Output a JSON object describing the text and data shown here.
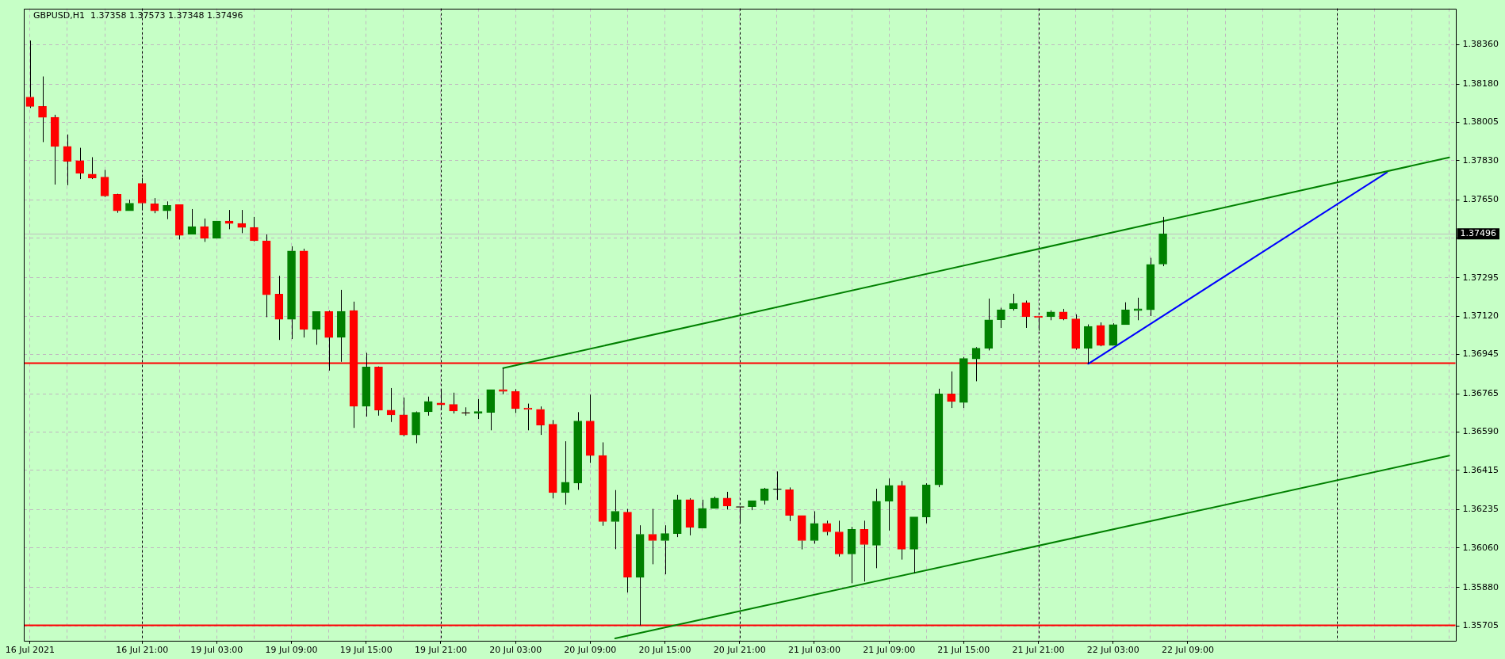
{
  "chart_data": {
    "type": "candlestick",
    "title": "GBPUSD,H1  1.37358 1.37573 1.37348 1.37496",
    "categories": [
      "16 Jul 2021",
      null,
      null,
      null,
      null,
      null,
      null,
      null,
      null,
      "16 Jul 21:00",
      null,
      null,
      null,
      null,
      null,
      "19 Jul 03:00",
      null,
      null,
      null,
      null,
      null,
      "19 Jul 09:00",
      null,
      null,
      null,
      null,
      null,
      "19 Jul 15:00",
      null,
      null,
      null,
      null,
      null,
      "19 Jul 21:00",
      null,
      null,
      null,
      null,
      null,
      "20 Jul 03:00",
      null,
      null,
      null,
      null,
      null,
      "20 Jul 09:00",
      null,
      null,
      null,
      null,
      null,
      "20 Jul 15:00",
      null,
      null,
      null,
      null,
      null,
      "20 Jul 21:00",
      null,
      null,
      null,
      null,
      null,
      "21 Jul 03:00",
      null,
      null,
      null,
      null,
      null,
      "21 Jul 09:00",
      null,
      null,
      null,
      null,
      null,
      "21 Jul 15:00",
      null,
      null,
      null,
      null,
      null,
      "21 Jul 21:00",
      null,
      null,
      null,
      null,
      null,
      "22 Jul 03:00",
      null,
      null,
      null,
      null,
      null,
      "22 Jul 09:00",
      null,
      null,
      null,
      null,
      null,
      null,
      null,
      null,
      null,
      null,
      null,
      null,
      null,
      null,
      null,
      null,
      null,
      null,
      null,
      null,
      null
    ],
    "ohlc": [
      [
        1.38121,
        1.38379,
        1.38071,
        1.38078
      ],
      [
        1.38078,
        1.38215,
        1.37915,
        1.38028
      ],
      [
        1.38028,
        1.3804,
        1.37721,
        1.37895
      ],
      [
        1.37895,
        1.3795,
        1.37718,
        1.37827
      ],
      [
        1.3783,
        1.37889,
        1.37746,
        1.37773
      ],
      [
        1.37769,
        1.37846,
        1.37746,
        1.37751
      ],
      [
        1.37755,
        1.37788,
        1.37664,
        1.37669
      ],
      [
        1.37676,
        1.37679,
        1.37592,
        1.37601
      ],
      [
        1.37601,
        1.37652,
        1.37601,
        1.37636
      ],
      [
        1.37726,
        1.37751,
        1.37604,
        1.37636
      ],
      [
        1.37633,
        1.37659,
        1.3759,
        1.37601
      ],
      [
        1.37601,
        1.37644,
        1.37563,
        1.37626
      ],
      [
        1.37629,
        1.37629,
        1.3747,
        1.37489
      ],
      [
        1.37493,
        1.37609,
        1.37493,
        1.37529
      ],
      [
        1.37529,
        1.37566,
        1.37459,
        1.37475
      ],
      [
        1.37475,
        1.37554,
        1.37475,
        1.37554
      ],
      [
        1.37554,
        1.37605,
        1.37517,
        1.37543
      ],
      [
        1.37543,
        1.37605,
        1.37499,
        1.37525
      ],
      [
        1.37525,
        1.37573,
        1.37461,
        1.37464
      ],
      [
        1.37464,
        1.37493,
        1.37115,
        1.37217
      ],
      [
        1.3722,
        1.37304,
        1.37011,
        1.37105
      ],
      [
        1.37105,
        1.37439,
        1.37015,
        1.37418
      ],
      [
        1.37418,
        1.37428,
        1.37022,
        1.37059
      ],
      [
        1.37059,
        1.37141,
        1.36989,
        1.37141
      ],
      [
        1.37141,
        1.37145,
        1.36871,
        1.37022
      ],
      [
        1.37023,
        1.3724,
        1.36911,
        1.37142
      ],
      [
        1.37145,
        1.37186,
        1.36609,
        1.36708
      ],
      [
        1.36708,
        1.36952,
        1.36661,
        1.36887
      ],
      [
        1.36887,
        1.3689,
        1.36665,
        1.3669
      ],
      [
        1.3669,
        1.36791,
        1.36636,
        1.36668
      ],
      [
        1.36668,
        1.36748,
        1.36571,
        1.36577
      ],
      [
        1.36577,
        1.36684,
        1.36539,
        1.3668
      ],
      [
        1.36683,
        1.36752,
        1.36665,
        1.3673
      ],
      [
        1.36723,
        1.36784,
        1.3669,
        1.36714
      ],
      [
        1.36716,
        1.3677,
        1.36675,
        1.36686
      ],
      [
        1.36678,
        1.36703,
        1.36665,
        1.36677
      ],
      [
        1.36676,
        1.36741,
        1.36649,
        1.36684
      ],
      [
        1.3668,
        1.36784,
        1.36598,
        1.36784
      ],
      [
        1.36784,
        1.36882,
        1.36763,
        1.36776
      ],
      [
        1.36776,
        1.36786,
        1.36677,
        1.36697
      ],
      [
        1.367,
        1.3672,
        1.36598,
        1.36693
      ],
      [
        1.36694,
        1.36707,
        1.36577,
        1.36622
      ],
      [
        1.36626,
        1.36645,
        1.36287,
        1.36313
      ],
      [
        1.36313,
        1.36548,
        1.36258,
        1.36361
      ],
      [
        1.36357,
        1.36681,
        1.36326,
        1.3664
      ],
      [
        1.3664,
        1.36761,
        1.36449,
        1.36483
      ],
      [
        1.36483,
        1.36543,
        1.36162,
        1.36181
      ],
      [
        1.36181,
        1.36325,
        1.36055,
        1.36228
      ],
      [
        1.36224,
        1.36239,
        1.35857,
        1.35927
      ],
      [
        1.35926,
        1.36164,
        1.35707,
        1.36123
      ],
      [
        1.36123,
        1.36239,
        1.35986,
        1.36094
      ],
      [
        1.36094,
        1.36164,
        1.3594,
        1.36126
      ],
      [
        1.36126,
        1.36303,
        1.3611,
        1.36281
      ],
      [
        1.36281,
        1.36288,
        1.36118,
        1.36155
      ],
      [
        1.36151,
        1.36281,
        1.36151,
        1.36241
      ],
      [
        1.36241,
        1.36295,
        1.36241,
        1.36288
      ],
      [
        1.36288,
        1.36317,
        1.36236,
        1.36252
      ],
      [
        1.36248,
        1.36248,
        1.36173,
        1.36247
      ],
      [
        1.36249,
        1.36277,
        1.36233,
        1.36277
      ],
      [
        1.36277,
        1.36335,
        1.36259,
        1.36331
      ],
      [
        1.36328,
        1.3641,
        1.3628,
        1.36329
      ],
      [
        1.36326,
        1.36337,
        1.36183,
        1.36209
      ],
      [
        1.36209,
        1.36209,
        1.36054,
        1.36094
      ],
      [
        1.36094,
        1.36228,
        1.3608,
        1.36173
      ],
      [
        1.36173,
        1.36185,
        1.36118,
        1.36134
      ],
      [
        1.36134,
        1.36185,
        1.36021,
        1.36033
      ],
      [
        1.36033,
        1.36157,
        1.35899,
        1.36145
      ],
      [
        1.36145,
        1.36185,
        1.35907,
        1.36076
      ],
      [
        1.36073,
        1.36331,
        1.35968,
        1.36274
      ],
      [
        1.36274,
        1.36378,
        1.3614,
        1.36346
      ],
      [
        1.36346,
        1.36367,
        1.36007,
        1.36055
      ],
      [
        1.36055,
        1.36202,
        1.35946,
        1.36202
      ],
      [
        1.36202,
        1.36356,
        1.36173,
        1.36349
      ],
      [
        1.36349,
        1.36788,
        1.36338,
        1.36764
      ],
      [
        1.36764,
        1.36867,
        1.367,
        1.3673
      ],
      [
        1.36725,
        1.36933,
        1.367,
        1.36926
      ],
      [
        1.36924,
        1.36978,
        1.36822,
        1.36973
      ],
      [
        1.36973,
        1.372,
        1.36963,
        1.37103
      ],
      [
        1.37103,
        1.37158,
        1.37066,
        1.37149
      ],
      [
        1.37153,
        1.37222,
        1.37145,
        1.37178
      ],
      [
        1.37181,
        1.37191,
        1.37066,
        1.37117
      ],
      [
        1.3712,
        1.3712,
        1.37053,
        1.37113
      ],
      [
        1.37117,
        1.37146,
        1.37101,
        1.37139
      ],
      [
        1.37139,
        1.37153,
        1.37101,
        1.37107
      ],
      [
        1.37107,
        1.37128,
        1.36966,
        1.36972
      ],
      [
        1.36973,
        1.37082,
        1.36902,
        1.37073
      ],
      [
        1.37077,
        1.37091,
        1.36982,
        1.36986
      ],
      [
        1.36986,
        1.37087,
        1.36986,
        1.37081
      ],
      [
        1.37081,
        1.37183,
        1.37081,
        1.37149
      ],
      [
        1.37145,
        1.37204,
        1.37101,
        1.37153
      ],
      [
        1.37149,
        1.37386,
        1.3712,
        1.37356
      ],
      [
        1.37358,
        1.37573,
        1.37348,
        1.37496
      ],
      null,
      null,
      null,
      null,
      null,
      null,
      null,
      null,
      null,
      null,
      null,
      null,
      null,
      null,
      null,
      null,
      null,
      null,
      null,
      null,
      null,
      null,
      null
    ],
    "colors": [
      "#ff0000",
      "#ff0000",
      "#ff0000",
      "#ff0000",
      "#ff0000",
      "#ff0000",
      "#ff0000",
      "#ff0000",
      "#008000",
      "#ff0000",
      "#ff0000",
      "#008000",
      "#ff0000",
      "#008000",
      "#ff0000",
      "#008000",
      "#ff0000",
      "#ff0000",
      "#ff0000",
      "#ff0000",
      "#ff0000",
      "#008000",
      "#ff0000",
      "#008000",
      "#ff0000",
      "#008000",
      "#ff0000",
      "#008000",
      "#ff0000",
      "#ff0000",
      "#ff0000",
      "#008000",
      "#008000",
      "#ff0000",
      "#ff0000",
      "#ff0000",
      "#008000",
      "#008000",
      "#ff0000",
      "#ff0000",
      "#ff0000",
      "#ff0000",
      "#ff0000",
      "#008000",
      "#008000",
      "#ff0000",
      "#ff0000",
      "#008000",
      "#ff0000",
      "#008000",
      "#ff0000",
      "#008000",
      "#008000",
      "#ff0000",
      "#008000",
      "#008000",
      "#ff0000",
      "#ff0000",
      "#008000",
      "#008000",
      "#008000",
      "#ff0000",
      "#ff0000",
      "#008000",
      "#ff0000",
      "#ff0000",
      "#008000",
      "#ff0000",
      "#008000",
      "#008000",
      "#ff0000",
      "#008000",
      "#008000",
      "#008000",
      "#ff0000",
      "#008000",
      "#008000",
      "#008000",
      "#008000",
      "#008000",
      "#ff0000",
      "#ff0000",
      "#008000",
      "#ff0000",
      "#ff0000",
      "#008000",
      "#ff0000",
      "#008000",
      "#008000",
      "#008000",
      "#008000",
      "#008000",
      null,
      null,
      null,
      null,
      null,
      null,
      null,
      null,
      null,
      null,
      null,
      null,
      null,
      null,
      null,
      null,
      null,
      null,
      null,
      null,
      null,
      null,
      null
    ],
    "series": [
      {
        "type": "line",
        "color": "#008000",
        "values": [
          null,
          null,
          null,
          null,
          null,
          null,
          null,
          null,
          null,
          null,
          null,
          null,
          null,
          null,
          null,
          null,
          null,
          null,
          null,
          null,
          null,
          null,
          null,
          null,
          null,
          null,
          null,
          null,
          null,
          null,
          null,
          null,
          null,
          null,
          null,
          null,
          null,
          null,
          1.36882,
          null,
          null,
          null,
          null,
          null,
          null,
          null,
          null,
          null,
          null,
          null,
          null,
          null,
          null,
          null,
          null,
          null,
          null,
          null,
          null,
          null,
          null,
          null,
          null,
          null,
          null,
          null,
          null,
          null,
          null,
          null,
          null,
          null,
          null,
          null,
          null,
          null,
          null,
          null,
          null,
          null,
          null,
          null,
          null,
          null,
          null,
          null,
          null,
          null,
          null,
          null,
          null,
          null,
          null,
          null,
          null,
          null,
          null,
          null,
          null,
          null,
          null,
          null,
          null,
          null,
          null,
          null,
          null,
          null,
          null,
          null,
          null,
          null,
          null,
          null,
          1.37845
        ]
      },
      {
        "type": "line",
        "color": "#008000",
        "values": [
          null,
          null,
          null,
          null,
          null,
          null,
          null,
          null,
          null,
          null,
          null,
          null,
          null,
          null,
          null,
          null,
          null,
          null,
          null,
          null,
          null,
          null,
          null,
          null,
          null,
          null,
          null,
          null,
          null,
          null,
          null,
          null,
          null,
          null,
          null,
          null,
          null,
          null,
          null,
          null,
          null,
          null,
          null,
          null,
          null,
          null,
          null,
          1.35647,
          null,
          null,
          null,
          null,
          null,
          null,
          null,
          null,
          null,
          null,
          null,
          null,
          null,
          null,
          null,
          null,
          null,
          null,
          null,
          null,
          null,
          null,
          null,
          null,
          null,
          null,
          null,
          null,
          null,
          null,
          null,
          null,
          null,
          null,
          null,
          null,
          null,
          null,
          null,
          null,
          null,
          null,
          null,
          null,
          null,
          null,
          null,
          null,
          null,
          null,
          null,
          null,
          null,
          null,
          null,
          null,
          null,
          null,
          null,
          null,
          null,
          null,
          null,
          null,
          null,
          null,
          1.36482
        ]
      },
      {
        "type": "line",
        "color": "#0000ff",
        "values": [
          null,
          null,
          null,
          null,
          null,
          null,
          null,
          null,
          null,
          null,
          null,
          null,
          null,
          null,
          null,
          null,
          null,
          null,
          null,
          null,
          null,
          null,
          null,
          null,
          null,
          null,
          null,
          null,
          null,
          null,
          null,
          null,
          null,
          null,
          null,
          null,
          null,
          null,
          null,
          null,
          null,
          null,
          null,
          null,
          null,
          null,
          null,
          null,
          null,
          null,
          null,
          null,
          null,
          null,
          null,
          null,
          null,
          null,
          null,
          null,
          null,
          null,
          null,
          null,
          null,
          null,
          null,
          null,
          null,
          null,
          null,
          null,
          null,
          null,
          null,
          null,
          null,
          null,
          null,
          null,
          null,
          null,
          null,
          null,
          null,
          1.36902,
          null,
          null,
          null,
          null,
          null,
          null,
          null,
          null,
          null,
          null,
          null,
          null,
          null,
          null,
          null,
          null,
          null,
          null,
          null,
          null,
          null,
          null,
          null,
          1.37777,
          null,
          null,
          null,
          null,
          null
        ]
      }
    ],
    "ylim": [
      1.35637,
      1.38526
    ],
    "yticks": [
      {
        "value": 1.3836,
        "label": "1.38360"
      },
      {
        "value": 1.3818,
        "label": "1.38180"
      },
      1.38005,
      {
        "value": 1.3783,
        "label": "1.37830"
      },
      {
        "value": 1.3765,
        "label": "1.37650"
      },
      {
        "value": 1.37475,
        "label": null
      },
      1.37295,
      {
        "value": 1.3712,
        "label": "1.37120"
      },
      1.36945,
      1.36765,
      {
        "value": 1.3659,
        "label": "1.36590"
      },
      1.36415,
      1.36235,
      {
        "value": 1.3606,
        "label": "1.36060"
      },
      {
        "value": 1.3588,
        "label": "1.35880"
      },
      1.35705
    ],
    "grid": true,
    "ref_lines": [
      {
        "axis": "y",
        "value": 1.36907,
        "color": "#ff0000"
      },
      {
        "axis": "y",
        "value": 1.35707,
        "color": "#ff0000"
      },
      {
        "axis": "y",
        "value": 1.37496,
        "label": "1.37496",
        "color": "#c0c0c0"
      }
    ]
  }
}
